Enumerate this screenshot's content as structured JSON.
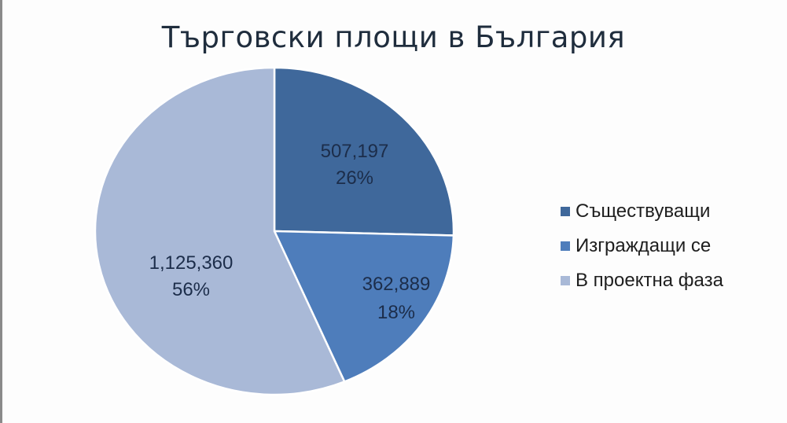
{
  "chart_data": {
    "type": "pie",
    "title": "Търговски площи в България",
    "categories": [
      "Съществуващи",
      "Изграждащи се",
      "В проектна фаза"
    ],
    "values": [
      507197,
      362889,
      1125360
    ],
    "value_labels": [
      "507,197",
      "362,889",
      "1,125,360"
    ],
    "percentages": [
      26,
      18,
      56
    ],
    "percent_labels": [
      "26%",
      "18%",
      "56%"
    ],
    "colors": [
      "#3f689b",
      "#4e7dbb",
      "#a9b9d7"
    ],
    "legend_position": "right",
    "start_angle": "12 o'clock, clockwise"
  },
  "legend": {
    "items": [
      {
        "label": "Съществуващи",
        "color": "#3f689b"
      },
      {
        "label": "Изграждащи се",
        "color": "#4e7dbb"
      },
      {
        "label": "В проектна фаза",
        "color": "#a9b9d7"
      }
    ]
  }
}
